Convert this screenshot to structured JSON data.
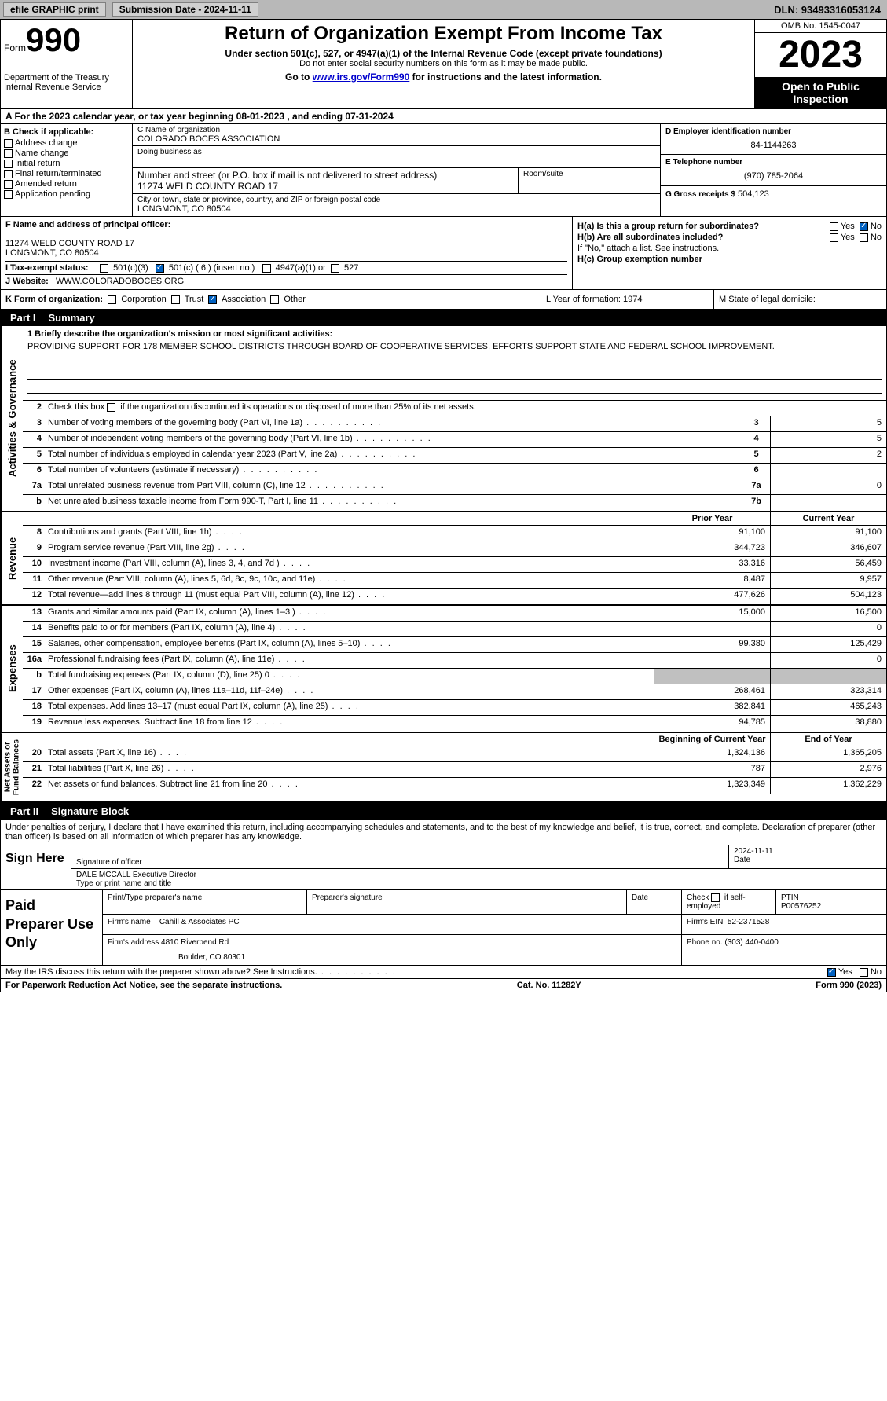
{
  "topbar": {
    "efile": "efile GRAPHIC print",
    "submission": "Submission Date - 2024-11-11",
    "dln": "DLN: 93493316053124"
  },
  "header": {
    "form_word": "Form",
    "form_num": "990",
    "title": "Return of Organization Exempt From Income Tax",
    "sub1": "Under section 501(c), 527, or 4947(a)(1) of the Internal Revenue Code (except private foundations)",
    "sub2": "Do not enter social security numbers on this form as it may be made public.",
    "sub3_pre": "Go to ",
    "sub3_link": "www.irs.gov/Form990",
    "sub3_post": " for instructions and the latest information.",
    "dept": "Department of the Treasury\nInternal Revenue Service",
    "omb": "OMB No. 1545-0047",
    "year": "2023",
    "open": "Open to Public Inspection"
  },
  "row_a": "A   For the 2023 calendar year, or tax year beginning 08-01-2023   , and ending 07-31-2024",
  "box_b": {
    "hdr": "B Check if applicable:",
    "items": [
      "Address change",
      "Name change",
      "Initial return",
      "Final return/terminated",
      "Amended return",
      "Application pending"
    ]
  },
  "box_c": {
    "name_lbl": "C Name of organization",
    "name": "COLORADO BOCES ASSOCIATION",
    "dba_lbl": "Doing business as",
    "street_lbl": "Number and street (or P.O. box if mail is not delivered to street address)",
    "street": "11274 WELD COUNTY ROAD 17",
    "room_lbl": "Room/suite",
    "city_lbl": "City or town, state or province, country, and ZIP or foreign postal code",
    "city": "LONGMONT, CO  80504"
  },
  "box_d": {
    "lbl": "D Employer identification number",
    "val": "84-1144263"
  },
  "box_e": {
    "lbl": "E Telephone number",
    "val": "(970) 785-2064"
  },
  "box_g": {
    "lbl": "G Gross receipts $",
    "val": "504,123"
  },
  "box_f": {
    "lbl": "F  Name and address of principal officer:",
    "line1": "11274 WELD COUNTY ROAD 17",
    "line2": "LONGMONT, CO  80504"
  },
  "box_h": {
    "ha": "H(a)  Is this a group return for subordinates?",
    "ha_yes": "Yes",
    "ha_no": "No",
    "hb": "H(b)  Are all subordinates included?",
    "hb_yes": "Yes",
    "hb_no": "No",
    "hb_note": "If \"No,\" attach a list. See instructions.",
    "hc": "H(c)  Group exemption number"
  },
  "row_i": {
    "lbl": "I    Tax-exempt status:",
    "o1": "501(c)(3)",
    "o2": "501(c) ( 6 ) (insert no.)",
    "o3": "4947(a)(1) or",
    "o4": "527"
  },
  "row_j": {
    "lbl": "J    Website:",
    "val": "WWW.COLORADOBOCES.ORG"
  },
  "row_k": {
    "lbl": "K Form of organization:",
    "opts": [
      "Corporation",
      "Trust",
      "Association",
      "Other"
    ],
    "l": "L Year of formation: 1974",
    "m": "M State of legal domicile:"
  },
  "part1": {
    "num": "Part I",
    "title": "Summary"
  },
  "vtabs": {
    "ag": "Activities & Governance",
    "rev": "Revenue",
    "exp": "Expenses",
    "nab": "Net Assets or\nFund Balances"
  },
  "mission": {
    "lbl": "1   Briefly describe the organization's mission or most significant activities:",
    "text": "PROVIDING SUPPORT FOR 178 MEMBER SCHOOL DISTRICTS THROUGH BOARD OF COOPERATIVE SERVICES, EFFORTS SUPPORT STATE AND FEDERAL SCHOOL IMPROVEMENT."
  },
  "lines_ag": [
    {
      "n": "2",
      "d": "Check this box     if the organization discontinued its operations or disposed of more than 25% of its net assets.",
      "box": "",
      "v": ""
    },
    {
      "n": "3",
      "d": "Number of voting members of the governing body (Part VI, line 1a)",
      "box": "3",
      "v": "5"
    },
    {
      "n": "4",
      "d": "Number of independent voting members of the governing body (Part VI, line 1b)",
      "box": "4",
      "v": "5"
    },
    {
      "n": "5",
      "d": "Total number of individuals employed in calendar year 2023 (Part V, line 2a)",
      "box": "5",
      "v": "2"
    },
    {
      "n": "6",
      "d": "Total number of volunteers (estimate if necessary)",
      "box": "6",
      "v": ""
    },
    {
      "n": "7a",
      "d": "Total unrelated business revenue from Part VIII, column (C), line 12",
      "box": "7a",
      "v": "0"
    },
    {
      "n": "b",
      "d": "Net unrelated business taxable income from Form 990-T, Part I, line 11",
      "box": "7b",
      "v": ""
    }
  ],
  "col_hdrs": {
    "prior": "Prior Year",
    "current": "Current Year"
  },
  "lines_rev": [
    {
      "n": "8",
      "d": "Contributions and grants (Part VIII, line 1h)",
      "p": "91,100",
      "c": "91,100"
    },
    {
      "n": "9",
      "d": "Program service revenue (Part VIII, line 2g)",
      "p": "344,723",
      "c": "346,607"
    },
    {
      "n": "10",
      "d": "Investment income (Part VIII, column (A), lines 3, 4, and 7d )",
      "p": "33,316",
      "c": "56,459"
    },
    {
      "n": "11",
      "d": "Other revenue (Part VIII, column (A), lines 5, 6d, 8c, 9c, 10c, and 11e)",
      "p": "8,487",
      "c": "9,957"
    },
    {
      "n": "12",
      "d": "Total revenue—add lines 8 through 11 (must equal Part VIII, column (A), line 12)",
      "p": "477,626",
      "c": "504,123"
    }
  ],
  "lines_exp": [
    {
      "n": "13",
      "d": "Grants and similar amounts paid (Part IX, column (A), lines 1–3 )",
      "p": "15,000",
      "c": "16,500"
    },
    {
      "n": "14",
      "d": "Benefits paid to or for members (Part IX, column (A), line 4)",
      "p": "",
      "c": "0"
    },
    {
      "n": "15",
      "d": "Salaries, other compensation, employee benefits (Part IX, column (A), lines 5–10)",
      "p": "99,380",
      "c": "125,429"
    },
    {
      "n": "16a",
      "d": "Professional fundraising fees (Part IX, column (A), line 11e)",
      "p": "",
      "c": "0"
    },
    {
      "n": "b",
      "d": "Total fundraising expenses (Part IX, column (D), line 25) 0",
      "p": "shade",
      "c": "shade"
    },
    {
      "n": "17",
      "d": "Other expenses (Part IX, column (A), lines 11a–11d, 11f–24e)",
      "p": "268,461",
      "c": "323,314"
    },
    {
      "n": "18",
      "d": "Total expenses. Add lines 13–17 (must equal Part IX, column (A), line 25)",
      "p": "382,841",
      "c": "465,243"
    },
    {
      "n": "19",
      "d": "Revenue less expenses. Subtract line 18 from line 12",
      "p": "94,785",
      "c": "38,880"
    }
  ],
  "col_hdrs2": {
    "beg": "Beginning of Current Year",
    "end": "End of Year"
  },
  "lines_nab": [
    {
      "n": "20",
      "d": "Total assets (Part X, line 16)",
      "p": "1,324,136",
      "c": "1,365,205"
    },
    {
      "n": "21",
      "d": "Total liabilities (Part X, line 26)",
      "p": "787",
      "c": "2,976"
    },
    {
      "n": "22",
      "d": "Net assets or fund balances. Subtract line 21 from line 20",
      "p": "1,323,349",
      "c": "1,362,229"
    }
  ],
  "part2": {
    "num": "Part II",
    "title": "Signature Block"
  },
  "sig_intro": "Under penalties of perjury, I declare that I have examined this return, including accompanying schedules and statements, and to the best of my knowledge and belief, it is true, correct, and complete. Declaration of preparer (other than officer) is based on all information of which preparer has any knowledge.",
  "sign": {
    "left": "Sign Here",
    "sig_lbl": "Signature of officer",
    "name": "DALE MCCALL  Executive Director",
    "name_lbl": "Type or print name and title",
    "date": "2024-11-11",
    "date_lbl": "Date"
  },
  "paid": {
    "left": "Paid Preparer Use Only",
    "h1": "Print/Type preparer's name",
    "h2": "Preparer's signature",
    "h3": "Date",
    "h4_pre": "Check",
    "h4_post": "if self-employed",
    "h5": "PTIN",
    "ptin": "P00576252",
    "firm_lbl": "Firm's name",
    "firm": "Cahill & Associates PC",
    "ein_lbl": "Firm's EIN",
    "ein": "52-2371528",
    "addr_lbl": "Firm's address",
    "addr1": "4810 Riverbend Rd",
    "addr2": "Boulder, CO  80301",
    "phone_lbl": "Phone no.",
    "phone": "(303) 440-0400"
  },
  "discuss": {
    "q": "May the IRS discuss this return with the preparer shown above? See Instructions.",
    "yes": "Yes",
    "no": "No"
  },
  "footer": {
    "left": "For Paperwork Reduction Act Notice, see the separate instructions.",
    "mid": "Cat. No. 11282Y",
    "right": "Form 990 (2023)"
  }
}
